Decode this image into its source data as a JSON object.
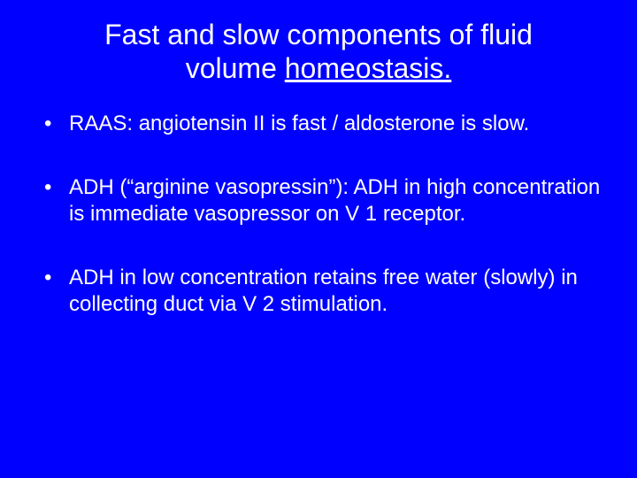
{
  "slide": {
    "background_color": "#0000ff",
    "text_color": "#ffffff",
    "font_family": "Arial",
    "title": {
      "line1": "Fast and slow components of fluid",
      "line2_prefix": "volume ",
      "line2_underlined": "homeostasis.",
      "fontsize": 32
    },
    "bullets": [
      "RAAS: angiotensin II is fast / aldosterone is slow.",
      "ADH (“arginine vasopressin”): ADH in high concentration is immediate vasopressor on V 1 receptor.",
      "ADH in low concentration retains free water (slowly) in collecting duct via V 2 stimulation."
    ],
    "bullet_fontsize": 24,
    "bullet_spacing": 42
  }
}
